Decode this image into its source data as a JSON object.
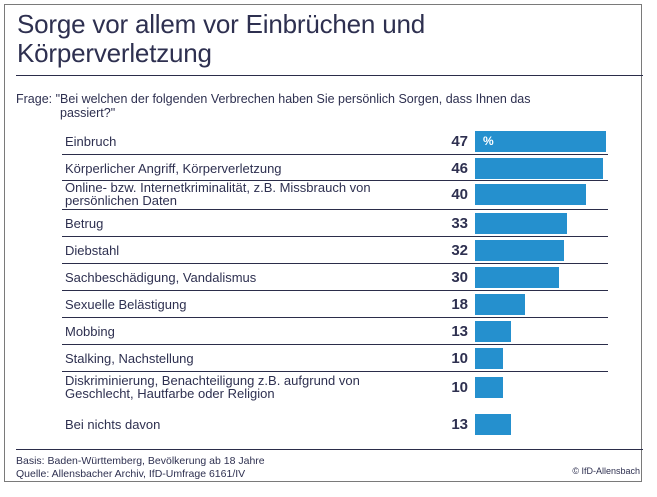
{
  "title_line1": "Sorge vor allem vor Einbrüchen und",
  "title_line2": "Körperverletzung",
  "question_line1": "Frage: \"Bei welchen der folgenden Verbrechen haben Sie persönlich Sorgen, dass Ihnen das",
  "question_line2": "passiert?\"",
  "percent_sign": "%",
  "footer": {
    "basis": "Basis: Baden-Württemberg, Bevölkerung ab 18 Jahre",
    "quelle": "Quelle: Allensbacher Archiv, IfD-Umfrage 6161/IV",
    "copyright": "© IfD-Allensbach"
  },
  "colors": {
    "bar": "#2590ce",
    "text": "#2e3050"
  },
  "chart_data": {
    "type": "bar",
    "orientation": "horizontal",
    "title": "Sorge vor allem vor Einbrüchen und Körperverletzung",
    "unit": "%",
    "xlim": [
      0,
      47
    ],
    "categories": [
      "Einbruch",
      "Körperlicher Angriff, Körperverletzung",
      "Online- bzw. Internetkriminalität, z.B. Missbrauch von persönlichen Daten",
      "Betrug",
      "Diebstahl",
      "Sachbeschädigung, Vandalismus",
      "Sexuelle Belästigung",
      "Mobbing",
      "Stalking, Nachstellung",
      "Diskriminierung, Benachteiligung z.B. aufgrund von Geschlecht, Hautfarbe oder Religion",
      "Bei nichts davon"
    ],
    "label_lines": [
      [
        "Einbruch"
      ],
      [
        "Körperlicher Angriff, Körperverletzung"
      ],
      [
        "Online- bzw. Internetkriminalität, z.B. Missbrauch von",
        "persönlichen Daten"
      ],
      [
        "Betrug"
      ],
      [
        "Diebstahl"
      ],
      [
        "Sachbeschädigung, Vandalismus"
      ],
      [
        "Sexuelle Belästigung"
      ],
      [
        "Mobbing"
      ],
      [
        "Stalking, Nachstellung"
      ],
      [
        "Diskriminierung, Benachteiligung z.B. aufgrund von",
        "Geschlecht, Hautfarbe oder Religion"
      ],
      [
        "Bei nichts davon"
      ]
    ],
    "values": [
      47,
      46,
      40,
      33,
      32,
      30,
      18,
      13,
      10,
      10,
      13
    ]
  }
}
